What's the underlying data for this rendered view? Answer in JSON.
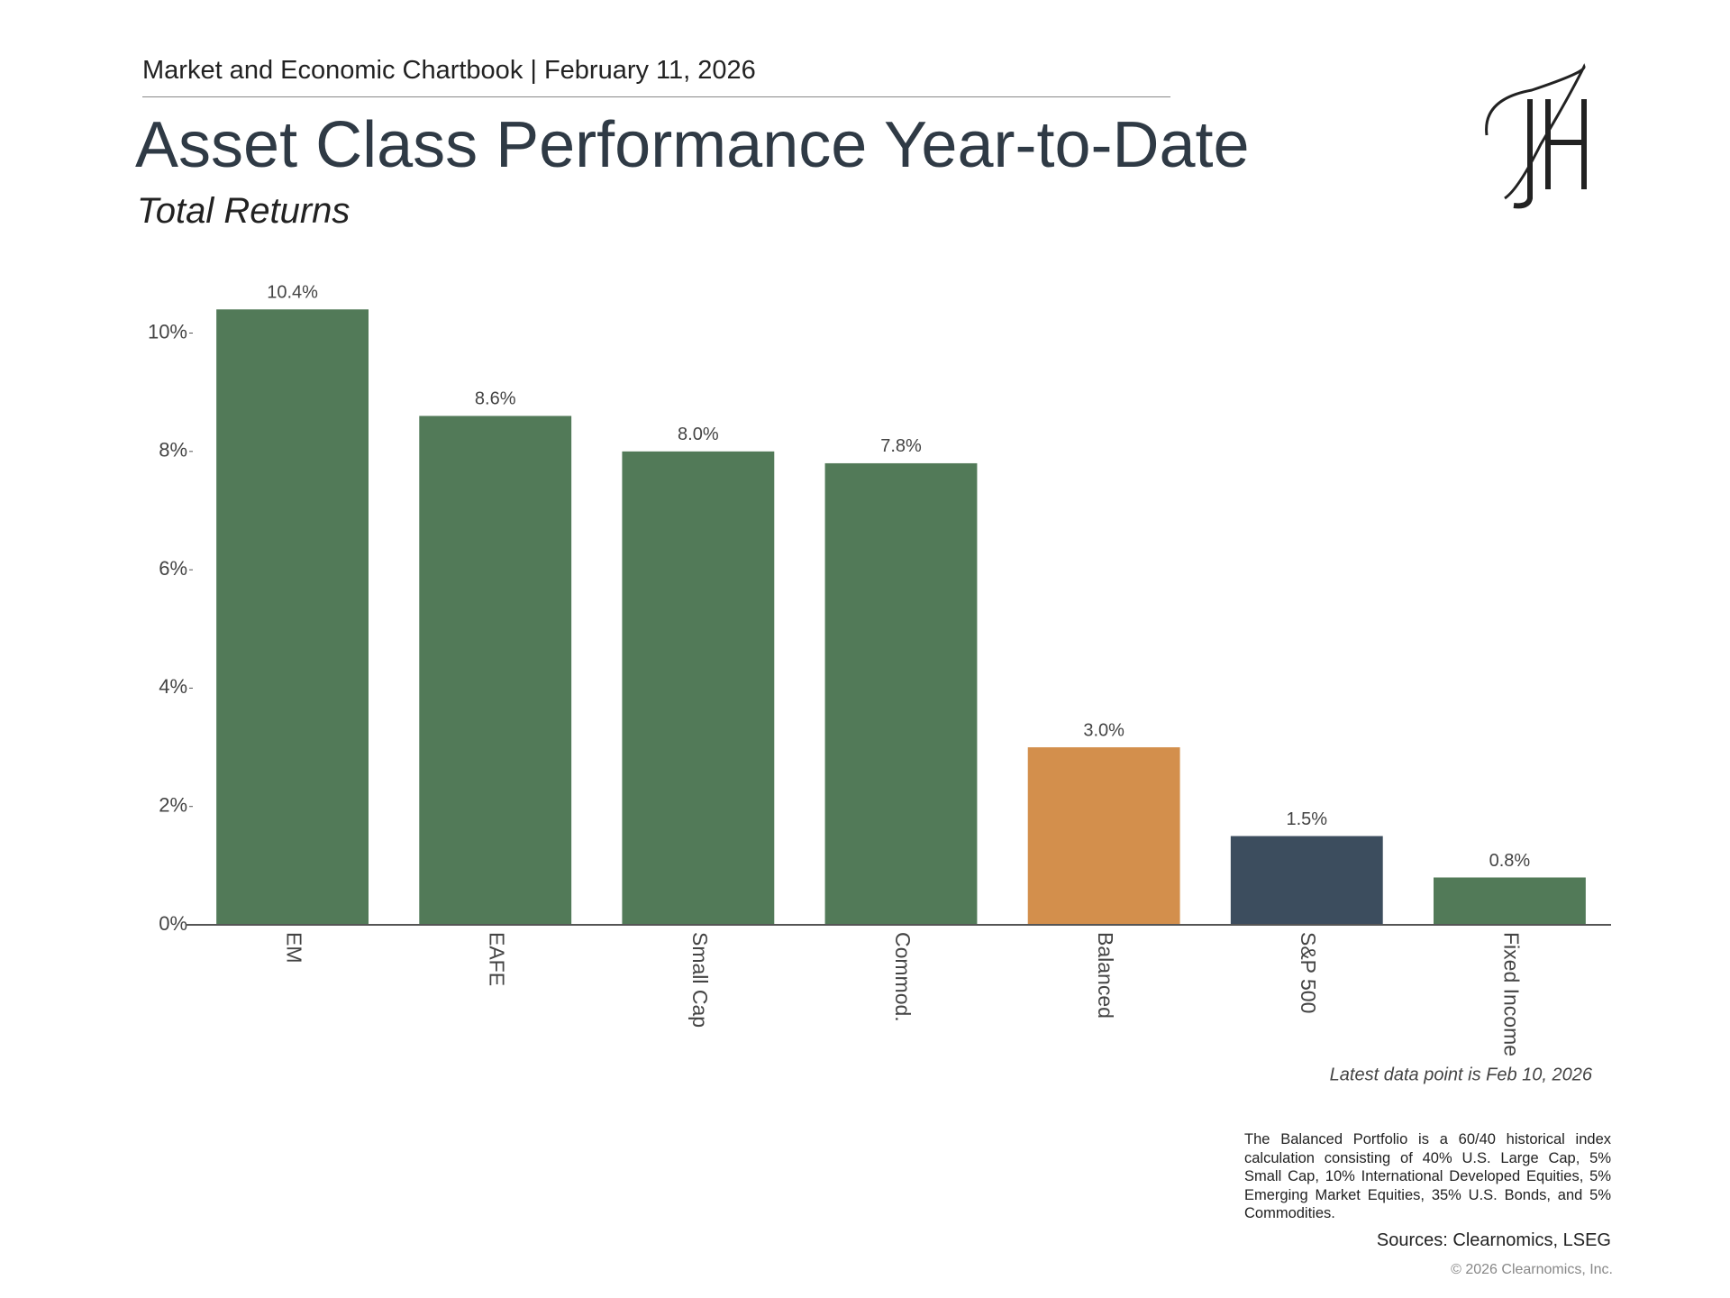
{
  "header": {
    "breadcrumb": "Market and Economic Chartbook | February 11, 2026"
  },
  "chart_data": {
    "type": "bar",
    "title": "Asset Class Performance Year-to-Date",
    "subtitle": "Total Returns",
    "categories": [
      "EM",
      "EAFE",
      "Small Cap",
      "Commod.",
      "Balanced",
      "S&P 500",
      "Fixed Income"
    ],
    "values": [
      10.4,
      8.6,
      8.0,
      7.8,
      3.0,
      1.5,
      0.8
    ],
    "value_labels": [
      "10.4%",
      "8.6%",
      "8.0%",
      "7.8%",
      "3.0%",
      "1.5%",
      "0.8%"
    ],
    "colors": [
      "#527a58",
      "#527a58",
      "#527a58",
      "#527a58",
      "#d38f4c",
      "#3c4d5e",
      "#527a58"
    ],
    "ylim": [
      0,
      10.8
    ],
    "yticks": [
      {
        "value": 0,
        "label": "0%"
      },
      {
        "value": 2,
        "label": "2%"
      },
      {
        "value": 4,
        "label": "4%"
      },
      {
        "value": 6,
        "label": "6%"
      },
      {
        "value": 8,
        "label": "8%"
      },
      {
        "value": 10,
        "label": "10%"
      }
    ],
    "grid": false,
    "note": "Latest data point is Feb 10, 2026",
    "footnote": "The Balanced Portfolio is a 60/40 historical index calculation consisting of 40% U.S. Large Cap, 5% Small Cap, 10% International Developed Equities, 5% Emerging Market Equities, 35% U.S. Bonds, and 5% Commodities.",
    "source": "Sources: Clearnomics, LSEG",
    "copyright": "© 2026 Clearnomics, Inc."
  }
}
